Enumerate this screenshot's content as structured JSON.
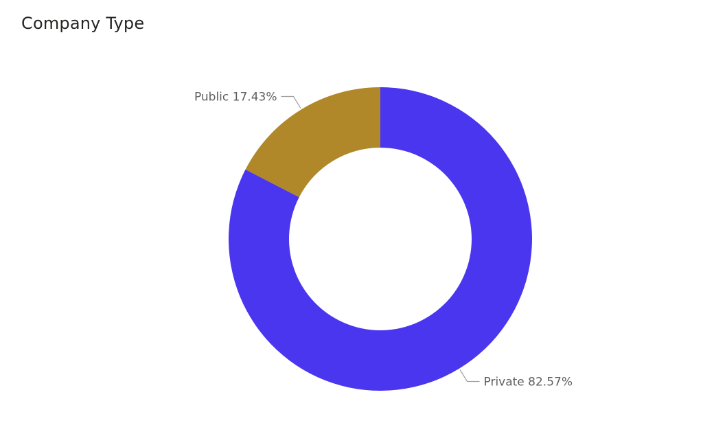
{
  "title": "Company Type",
  "chart_data": {
    "type": "pie",
    "donut": true,
    "title": "Company Type",
    "categories": [
      "Private",
      "Public"
    ],
    "values": [
      82.57,
      17.43
    ],
    "labels": [
      "Private 82.57%",
      "Public 17.43%"
    ],
    "colors": [
      "#4B36EF",
      "#B08829"
    ],
    "unit": "%",
    "legend": "none"
  }
}
